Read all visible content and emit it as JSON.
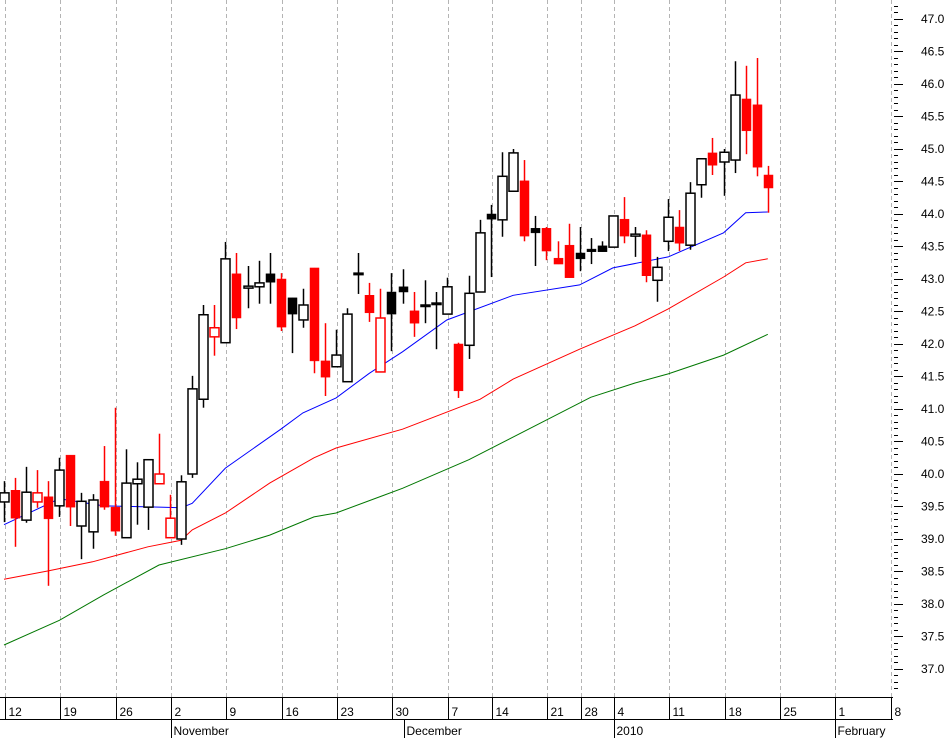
{
  "chart_data": {
    "type": "candlestick",
    "title": "",
    "xlabel": "",
    "ylabel": "",
    "ylim": [
      36.6,
      47.3
    ],
    "grid": {
      "vertical": true,
      "horizontal": false,
      "style": "dashed"
    },
    "colors": {
      "up_close": "#000000",
      "down_close": "#ff0000",
      "ma_short": "#0000ff",
      "ma_mid": "#ff0000",
      "ma_long": "#007700",
      "grid": "#b4b4b4"
    },
    "y_ticks": [
      "47.0",
      "46.5",
      "46.0",
      "45.5",
      "45.0",
      "44.5",
      "44.0",
      "43.5",
      "43.0",
      "42.5",
      "42.0",
      "41.5",
      "41.0",
      "40.5",
      "40.0",
      "39.5",
      "39.0",
      "38.5",
      "38.0",
      "37.5",
      "37.0"
    ],
    "x_day_ticks": [
      "12",
      "19",
      "26",
      "2",
      "9",
      "16",
      "23",
      "30",
      "7",
      "14",
      "21",
      "28",
      "4",
      "11",
      "18",
      "25",
      "1",
      "8"
    ],
    "x_month_labels": [
      "November",
      "December",
      "2010",
      "February"
    ],
    "candles": [
      {
        "d": "2009-10-12",
        "o": 39.57,
        "h": 39.89,
        "l": 39.26,
        "c": 39.71,
        "col": "black"
      },
      {
        "d": "2009-10-13",
        "o": 39.75,
        "h": 39.94,
        "l": 38.88,
        "c": 39.32,
        "col": "red"
      },
      {
        "d": "2009-10-14",
        "o": 39.29,
        "h": 40.11,
        "l": 39.25,
        "c": 39.72,
        "col": "black"
      },
      {
        "d": "2009-10-15",
        "o": 39.57,
        "h": 40.06,
        "l": 39.48,
        "c": 39.71,
        "col": "red"
      },
      {
        "d": "2009-10-16",
        "o": 39.65,
        "h": 39.89,
        "l": 38.28,
        "c": 39.31,
        "col": "red"
      },
      {
        "d": "2009-10-19",
        "o": 39.51,
        "h": 40.25,
        "l": 39.34,
        "c": 40.06,
        "col": "black"
      },
      {
        "d": "2009-10-20",
        "o": 40.29,
        "h": 40.29,
        "l": 39.2,
        "c": 39.49,
        "col": "red"
      },
      {
        "d": "2009-10-21",
        "o": 39.2,
        "h": 39.71,
        "l": 38.69,
        "c": 39.58,
        "col": "black"
      },
      {
        "d": "2009-10-22",
        "o": 39.11,
        "h": 39.69,
        "l": 38.85,
        "c": 39.6,
        "col": "black"
      },
      {
        "d": "2009-10-23",
        "o": 39.89,
        "h": 40.43,
        "l": 39.45,
        "c": 39.49,
        "col": "red"
      },
      {
        "d": "2009-10-26",
        "o": 39.49,
        "h": 41.02,
        "l": 39.05,
        "c": 39.12,
        "col": "red"
      },
      {
        "d": "2009-10-27",
        "o": 39.02,
        "h": 40.38,
        "l": 39.02,
        "c": 39.86,
        "col": "black"
      },
      {
        "d": "2009-10-28",
        "o": 39.85,
        "h": 40.18,
        "l": 39.22,
        "c": 39.92,
        "col": "black"
      },
      {
        "d": "2009-10-29",
        "o": 39.49,
        "h": 40.23,
        "l": 39.14,
        "c": 40.22,
        "col": "black"
      },
      {
        "d": "2009-10-30",
        "o": 39.85,
        "h": 40.62,
        "l": 39.85,
        "c": 40.0,
        "col": "red"
      },
      {
        "d": "2009-11-02",
        "o": 39.02,
        "h": 39.68,
        "l": 39.02,
        "c": 39.32,
        "col": "red"
      },
      {
        "d": "2009-11-03",
        "o": 39.0,
        "h": 39.98,
        "l": 38.91,
        "c": 39.88,
        "col": "black"
      },
      {
        "d": "2009-11-04",
        "o": 40.0,
        "h": 41.51,
        "l": 39.94,
        "c": 41.31,
        "col": "black"
      },
      {
        "d": "2009-11-05",
        "o": 41.15,
        "h": 42.6,
        "l": 41.02,
        "c": 42.45,
        "col": "black"
      },
      {
        "d": "2009-11-06",
        "o": 42.11,
        "h": 42.6,
        "l": 41.82,
        "c": 42.25,
        "col": "red"
      },
      {
        "d": "2009-11-09",
        "o": 42.02,
        "h": 43.57,
        "l": 42.02,
        "c": 43.31,
        "col": "black"
      },
      {
        "d": "2009-11-10",
        "o": 43.08,
        "h": 43.4,
        "l": 42.23,
        "c": 42.4,
        "col": "red"
      },
      {
        "d": "2009-11-11",
        "o": 42.86,
        "h": 43.2,
        "l": 42.55,
        "c": 42.89,
        "col": "black"
      },
      {
        "d": "2009-11-12",
        "o": 42.88,
        "h": 43.28,
        "l": 42.62,
        "c": 42.94,
        "col": "black"
      },
      {
        "d": "2009-11-13",
        "o": 43.08,
        "h": 43.4,
        "l": 42.62,
        "c": 42.95,
        "col": "black"
      },
      {
        "d": "2009-11-16",
        "o": 43.0,
        "h": 43.09,
        "l": 42.2,
        "c": 42.26,
        "col": "red"
      },
      {
        "d": "2009-11-17",
        "o": 42.71,
        "h": 42.71,
        "l": 41.86,
        "c": 42.46,
        "col": "black"
      },
      {
        "d": "2009-11-18",
        "o": 42.37,
        "h": 42.85,
        "l": 42.25,
        "c": 42.6,
        "col": "black"
      },
      {
        "d": "2009-11-19",
        "o": 43.17,
        "h": 43.17,
        "l": 41.55,
        "c": 41.74,
        "col": "red"
      },
      {
        "d": "2009-11-20",
        "o": 41.74,
        "h": 42.32,
        "l": 41.2,
        "c": 41.49,
        "col": "red"
      },
      {
        "d": "2009-11-23",
        "o": 41.65,
        "h": 42.22,
        "l": 41.65,
        "c": 41.83,
        "col": "black"
      },
      {
        "d": "2009-11-24",
        "o": 41.42,
        "h": 42.55,
        "l": 41.42,
        "c": 42.46,
        "col": "black"
      },
      {
        "d": "2009-11-25",
        "o": 43.09,
        "h": 43.4,
        "l": 42.77,
        "c": 43.09,
        "col": "black"
      },
      {
        "d": "2009-11-26",
        "o": 42.75,
        "h": 42.94,
        "l": 42.34,
        "c": 42.48,
        "col": "red"
      },
      {
        "d": "2009-11-27",
        "o": 41.57,
        "h": 42.85,
        "l": 41.57,
        "c": 42.4,
        "col": "red"
      },
      {
        "d": "2009-11-30",
        "o": 42.8,
        "h": 43.09,
        "l": 41.89,
        "c": 42.46,
        "col": "black"
      },
      {
        "d": "2009-12-01",
        "o": 42.88,
        "h": 43.15,
        "l": 42.62,
        "c": 42.8,
        "col": "black"
      },
      {
        "d": "2009-12-02",
        "o": 42.51,
        "h": 42.8,
        "l": 42.11,
        "c": 42.32,
        "col": "red"
      },
      {
        "d": "2009-12-03",
        "o": 42.6,
        "h": 42.98,
        "l": 42.32,
        "c": 42.6,
        "col": "black"
      },
      {
        "d": "2009-12-04",
        "o": 42.63,
        "h": 42.8,
        "l": 41.92,
        "c": 42.63,
        "col": "black"
      },
      {
        "d": "2009-12-07",
        "o": 42.46,
        "h": 43.02,
        "l": 42.46,
        "c": 42.88,
        "col": "black"
      },
      {
        "d": "2009-12-09",
        "o": 42.0,
        "h": 42.02,
        "l": 41.17,
        "c": 41.28,
        "col": "red"
      },
      {
        "d": "2009-12-10",
        "o": 41.98,
        "h": 43.05,
        "l": 41.77,
        "c": 42.78,
        "col": "black"
      },
      {
        "d": "2009-12-11",
        "o": 42.8,
        "h": 43.91,
        "l": 42.8,
        "c": 43.71,
        "col": "black"
      },
      {
        "d": "2009-12-14",
        "o": 44.0,
        "h": 44.14,
        "l": 43.03,
        "c": 43.92,
        "col": "black"
      },
      {
        "d": "2009-12-15",
        "o": 43.91,
        "h": 44.95,
        "l": 43.65,
        "c": 44.58,
        "col": "black"
      },
      {
        "d": "2009-12-16",
        "o": 44.35,
        "h": 45.0,
        "l": 44.35,
        "c": 44.94,
        "col": "black"
      },
      {
        "d": "2009-12-17",
        "o": 44.51,
        "h": 44.83,
        "l": 43.58,
        "c": 43.66,
        "col": "red"
      },
      {
        "d": "2009-12-18",
        "o": 43.78,
        "h": 43.97,
        "l": 43.2,
        "c": 43.71,
        "col": "black"
      },
      {
        "d": "2009-12-21",
        "o": 43.78,
        "h": 43.8,
        "l": 43.29,
        "c": 43.43,
        "col": "red"
      },
      {
        "d": "2009-12-22",
        "o": 43.32,
        "h": 43.58,
        "l": 43.23,
        "c": 43.23,
        "col": "red"
      },
      {
        "d": "2009-12-23",
        "o": 43.52,
        "h": 43.85,
        "l": 43.02,
        "c": 43.02,
        "col": "red"
      },
      {
        "d": "2009-12-28",
        "o": 43.4,
        "h": 43.8,
        "l": 43.12,
        "c": 43.31,
        "col": "black"
      },
      {
        "d": "2009-12-29",
        "o": 43.46,
        "h": 43.63,
        "l": 43.23,
        "c": 43.42,
        "col": "black"
      },
      {
        "d": "2009-12-30",
        "o": 43.51,
        "h": 43.58,
        "l": 43.42,
        "c": 43.42,
        "col": "black"
      },
      {
        "d": "2010-01-04",
        "o": 43.49,
        "h": 43.97,
        "l": 43.49,
        "c": 43.97,
        "col": "black"
      },
      {
        "d": "2010-01-05",
        "o": 43.92,
        "h": 44.26,
        "l": 43.55,
        "c": 43.66,
        "col": "red"
      },
      {
        "d": "2010-01-06",
        "o": 43.66,
        "h": 43.8,
        "l": 43.34,
        "c": 43.69,
        "col": "black"
      },
      {
        "d": "2010-01-07",
        "o": 43.68,
        "h": 43.75,
        "l": 42.95,
        "c": 43.05,
        "col": "red"
      },
      {
        "d": "2010-01-08",
        "o": 42.98,
        "h": 43.34,
        "l": 42.65,
        "c": 43.18,
        "col": "black"
      },
      {
        "d": "2010-01-11",
        "o": 43.58,
        "h": 44.23,
        "l": 43.43,
        "c": 43.95,
        "col": "black"
      },
      {
        "d": "2010-01-12",
        "o": 43.8,
        "h": 44.06,
        "l": 43.43,
        "c": 43.55,
        "col": "red"
      },
      {
        "d": "2010-01-13",
        "o": 43.52,
        "h": 44.49,
        "l": 43.45,
        "c": 44.32,
        "col": "black"
      },
      {
        "d": "2010-01-14",
        "o": 44.45,
        "h": 44.85,
        "l": 44.25,
        "c": 44.85,
        "col": "black"
      },
      {
        "d": "2010-01-15",
        "o": 44.94,
        "h": 45.17,
        "l": 44.6,
        "c": 44.75,
        "col": "red"
      },
      {
        "d": "2010-01-18",
        "o": 44.8,
        "h": 45.0,
        "l": 44.28,
        "c": 44.95,
        "col": "black"
      },
      {
        "d": "2010-01-19",
        "o": 44.83,
        "h": 46.35,
        "l": 44.63,
        "c": 45.83,
        "col": "black"
      },
      {
        "d": "2010-01-20",
        "o": 45.77,
        "h": 46.28,
        "l": 44.92,
        "c": 45.28,
        "col": "red"
      },
      {
        "d": "2010-01-21",
        "o": 45.68,
        "h": 46.4,
        "l": 44.58,
        "c": 44.72,
        "col": "red"
      },
      {
        "d": "2010-01-22",
        "o": 44.6,
        "h": 44.74,
        "l": 44.02,
        "c": 44.4,
        "col": "red"
      }
    ],
    "moving_averages": [
      {
        "color": "#0000ff",
        "points": [
          [
            "2009-10-12",
            39.22
          ],
          [
            "2009-10-19",
            39.62
          ],
          [
            "2009-10-23",
            39.51
          ],
          [
            "2009-10-30",
            39.49
          ],
          [
            "2009-11-03",
            39.48
          ],
          [
            "2009-11-04",
            39.55
          ],
          [
            "2009-11-09",
            40.09
          ],
          [
            "2009-11-16",
            40.69
          ],
          [
            "2009-11-18",
            40.94
          ],
          [
            "2009-11-23",
            41.17
          ],
          [
            "2009-11-26",
            41.55
          ],
          [
            "2009-12-01",
            41.88
          ],
          [
            "2009-12-07",
            42.37
          ],
          [
            "2009-12-16",
            42.75
          ],
          [
            "2009-12-28",
            42.91
          ],
          [
            "2010-01-04",
            43.17
          ],
          [
            "2010-01-11",
            43.34
          ],
          [
            "2010-01-18",
            43.71
          ],
          [
            "2010-01-20",
            44.02
          ],
          [
            "2010-01-22",
            44.03
          ]
        ]
      },
      {
        "color": "#ff0000",
        "points": [
          [
            "2009-10-12",
            38.38
          ],
          [
            "2009-10-16",
            38.51
          ],
          [
            "2009-10-22",
            38.65
          ],
          [
            "2009-10-29",
            38.88
          ],
          [
            "2009-11-03",
            38.98
          ],
          [
            "2009-11-04",
            39.14
          ],
          [
            "2009-11-09",
            39.4
          ],
          [
            "2009-11-13",
            39.86
          ],
          [
            "2009-11-19",
            40.25
          ],
          [
            "2009-11-23",
            40.4
          ],
          [
            "2009-12-01",
            40.69
          ],
          [
            "2009-12-11",
            41.15
          ],
          [
            "2009-12-16",
            41.46
          ],
          [
            "2009-12-28",
            41.92
          ],
          [
            "2010-01-06",
            42.28
          ],
          [
            "2010-01-11",
            42.54
          ],
          [
            "2010-01-18",
            43.03
          ],
          [
            "2010-01-20",
            43.25
          ],
          [
            "2010-01-22",
            43.31
          ]
        ]
      },
      {
        "color": "#007700",
        "points": [
          [
            "2009-10-12",
            37.37
          ],
          [
            "2009-10-19",
            37.75
          ],
          [
            "2009-10-23",
            38.14
          ],
          [
            "2009-10-30",
            38.6
          ],
          [
            "2009-11-09",
            38.85
          ],
          [
            "2009-11-13",
            39.06
          ],
          [
            "2009-11-19",
            39.34
          ],
          [
            "2009-11-23",
            39.4
          ],
          [
            "2009-12-01",
            39.78
          ],
          [
            "2009-12-10",
            40.22
          ],
          [
            "2009-12-29",
            41.18
          ],
          [
            "2010-01-06",
            41.4
          ],
          [
            "2010-01-11",
            41.54
          ],
          [
            "2010-01-18",
            41.83
          ],
          [
            "2010-01-22",
            42.15
          ]
        ]
      }
    ]
  }
}
